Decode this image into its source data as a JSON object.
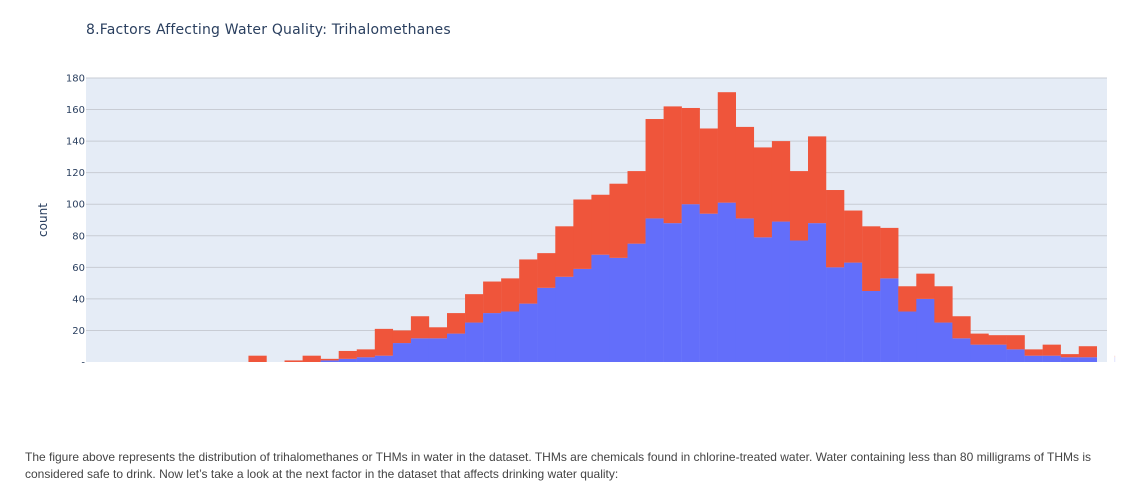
{
  "chart_data": {
    "type": "bar",
    "stacked": true,
    "title": "8.Factors Affecting Water Quality: Trihalomethanes",
    "xlabel": "",
    "ylabel": "count",
    "ylim": [
      0,
      180
    ],
    "yticks": [
      20,
      40,
      60,
      80,
      100,
      120,
      140,
      160,
      180
    ],
    "y_zero_label": "-",
    "grid": true,
    "plot_background": "#e5ecf6",
    "series": [
      {
        "color": "#636efa",
        "values": [
          0,
          0,
          0,
          0,
          0,
          0,
          0,
          0,
          0,
          0,
          0,
          0,
          0,
          1,
          2,
          3,
          4,
          12,
          15,
          15,
          18,
          25,
          31,
          32,
          37,
          47,
          54,
          59,
          68,
          66,
          75,
          91,
          88,
          100,
          94,
          101,
          91,
          79,
          89,
          77,
          88,
          60,
          63,
          45,
          53,
          32,
          40,
          25,
          15,
          11,
          11,
          8,
          4,
          4,
          3,
          3,
          0,
          3
        ]
      },
      {
        "color": "#ef553b",
        "values": [
          0,
          0,
          0,
          0,
          0,
          0,
          0,
          0,
          0,
          4,
          0,
          1,
          4,
          1,
          5,
          5,
          17,
          8,
          14,
          7,
          13,
          18,
          20,
          21,
          28,
          22,
          32,
          44,
          38,
          47,
          46,
          63,
          74,
          61,
          54,
          70,
          58,
          57,
          51,
          44,
          55,
          49,
          33,
          41,
          32,
          16,
          16,
          23,
          14,
          7,
          6,
          9,
          4,
          7,
          2,
          7,
          0,
          1
        ]
      }
    ]
  },
  "description": "The figure above represents the distribution of trihalomethanes or THMs in water in the dataset. THMs are chemicals found in chlorine-treated water. Water containing less than 80 milligrams of THMs is considered safe to drink. Now let’s take a look at the next factor in the dataset that affects drinking water quality:"
}
